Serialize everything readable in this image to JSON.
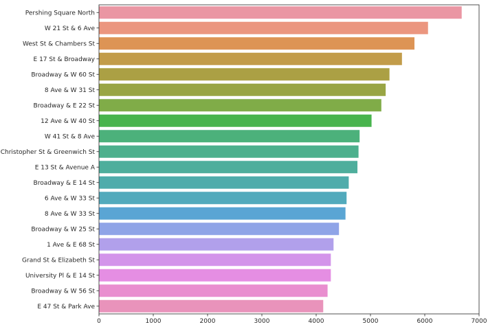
{
  "chart_data": {
    "type": "bar",
    "orientation": "horizontal",
    "categories": [
      "Pershing Square North",
      "W 21 St & 6 Ave",
      "West St & Chambers St",
      "E 17 St & Broadway",
      "Broadway & W 60 St",
      "8 Ave & W 31 St",
      "Broadway & E 22 St",
      "12 Ave & W 40 St",
      "W 41 St & 8 Ave",
      "Christopher St & Greenwich St",
      "E 13 St & Avenue A",
      "Broadway & E 14 St",
      "6 Ave & W 33 St",
      "8 Ave & W 33 St",
      "Broadway & W 25 St",
      "1 Ave & E 68 St",
      "Grand St & Elizabeth St",
      "University Pl & E 14 St",
      "Broadway & W 56 St",
      "E 47 St & Park Ave"
    ],
    "values": [
      6680,
      6060,
      5810,
      5580,
      5350,
      5280,
      5200,
      5020,
      4800,
      4780,
      4760,
      4600,
      4560,
      4540,
      4420,
      4320,
      4270,
      4270,
      4210,
      4130
    ],
    "colors": [
      "#ea96a3",
      "#eb967f",
      "#dd9455",
      "#c29c4a",
      "#aba044",
      "#99a544",
      "#80ac48",
      "#48b44d",
      "#4cb17b",
      "#4db08d",
      "#4eae9c",
      "#4facab",
      "#52aabc",
      "#5aa5d4",
      "#8fa4e7",
      "#b1a0eb",
      "#d394ea",
      "#e58ee3",
      "#e98ecf",
      "#e993bb"
    ],
    "xlim": [
      0,
      7000
    ],
    "xticks": [
      0,
      1000,
      2000,
      3000,
      4000,
      5000,
      6000,
      7000
    ],
    "title": "",
    "xlabel": "",
    "ylabel": "",
    "grid": false
  }
}
